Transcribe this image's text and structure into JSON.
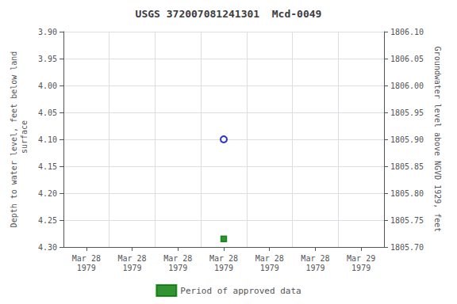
{
  "chart_data": {
    "type": "scatter",
    "title": "USGS 372007081241301  Mcd-0049",
    "ylabel": "Depth to water level, feet below land\n surface",
    "y2label": "Groundwater level above NGVD 1929, feet",
    "categories": [
      "Mar 28\n1979",
      "Mar 28\n1979",
      "Mar 28\n1979",
      "Mar 28\n1979",
      "Mar 28\n1979",
      "Mar 28\n1979",
      "Mar 29\n1979"
    ],
    "series": [
      {
        "color": "#0000bb",
        "marker": "open_circle",
        "values": [
          null,
          null,
          null,
          4.1,
          null,
          null,
          null
        ]
      },
      {
        "name": "Period of approved data",
        "color": "#007700",
        "marker": "square",
        "values": [
          null,
          null,
          null,
          4.285,
          null,
          null,
          null
        ]
      }
    ],
    "ylim": [
      4.3,
      3.9
    ],
    "yticks": [
      {
        "value": 3.9,
        "label": "3.90"
      },
      {
        "value": 3.95,
        "label": "3.95"
      },
      {
        "value": 4.0,
        "label": "4.00"
      },
      {
        "value": 4.05,
        "label": "4.05"
      },
      {
        "value": 4.1,
        "label": "4.10"
      },
      {
        "value": 4.15,
        "label": "4.15"
      },
      {
        "value": 4.2,
        "label": "4.20"
      },
      {
        "value": 4.25,
        "label": "4.25"
      },
      {
        "value": 4.3,
        "label": "4.30"
      }
    ],
    "y2lim": [
      1805.7,
      1806.1
    ],
    "y2ticks": [
      {
        "value": 1806.1,
        "label": "1806.10"
      },
      {
        "value": 1806.05,
        "label": "1806.05"
      },
      {
        "value": 1806.0,
        "label": "1806.00"
      },
      {
        "value": 1805.95,
        "label": "1805.95"
      },
      {
        "value": 1805.9,
        "label": "1805.90"
      },
      {
        "value": 1805.85,
        "label": "1805.85"
      },
      {
        "value": 1805.8,
        "label": "1805.80"
      },
      {
        "value": 1805.75,
        "label": "1805.75"
      },
      {
        "value": 1805.7,
        "label": "1805.70"
      }
    ],
    "grid": true,
    "legend": "bottom"
  }
}
